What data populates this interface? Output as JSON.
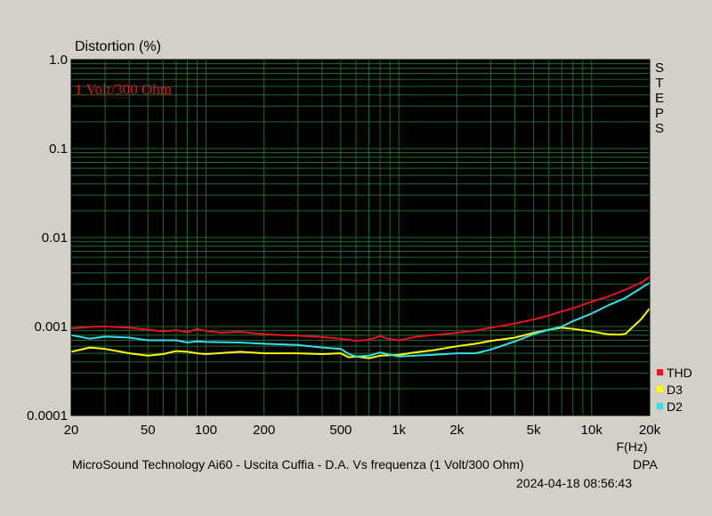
{
  "chart_data": {
    "type": "line",
    "title": "Distortion (%)",
    "annotation": "1 Volt/300 Ohm",
    "steps_label": "STEPS",
    "xlabel": "F(Hz)",
    "caption": "MicroSound Technology Ai60 - Uscita Cuffia - D.A. Vs frequenza (1 Volt/300 Ohm)",
    "brand": "DPA",
    "timestamp": "2024-04-18 08:56:43",
    "x_scale": "log",
    "y_scale": "log",
    "xlim": [
      20,
      20000
    ],
    "ylim": [
      0.0001,
      1.0
    ],
    "grid": true,
    "legend_position": "bottom-right",
    "x_ticks": [
      {
        "value": 20,
        "label": "20"
      },
      {
        "value": 50,
        "label": "50"
      },
      {
        "value": 100,
        "label": "100"
      },
      {
        "value": 200,
        "label": "200"
      },
      {
        "value": 500,
        "label": "500"
      },
      {
        "value": 1000,
        "label": "1k"
      },
      {
        "value": 2000,
        "label": "2k"
      },
      {
        "value": 5000,
        "label": "5k"
      },
      {
        "value": 10000,
        "label": "10k"
      },
      {
        "value": 20000,
        "label": "20k"
      }
    ],
    "y_ticks": [
      {
        "value": 1.0,
        "label": "1.0"
      },
      {
        "value": 0.1,
        "label": "0.1"
      },
      {
        "value": 0.01,
        "label": "0.01"
      },
      {
        "value": 0.001,
        "label": "0.001"
      },
      {
        "value": 0.0001,
        "label": "0.0001"
      }
    ],
    "series": [
      {
        "name": "THD",
        "color": "#e8141e",
        "x": [
          20,
          25,
          30,
          40,
          50,
          60,
          70,
          80,
          90,
          100,
          120,
          150,
          200,
          250,
          300,
          400,
          500,
          600,
          700,
          800,
          900,
          1000,
          1100,
          1200,
          1500,
          2000,
          2500,
          3000,
          4000,
          5000,
          6000,
          7000,
          8000,
          10000,
          12000,
          15000,
          18000,
          20000
        ],
        "values": [
          0.00095,
          0.00099,
          0.001,
          0.00097,
          0.00092,
          0.00088,
          0.00091,
          0.00086,
          0.00094,
          0.00089,
          0.00085,
          0.00087,
          0.00082,
          0.0008,
          0.00079,
          0.00076,
          0.00073,
          0.00069,
          0.00071,
          0.00078,
          0.00072,
          0.0007,
          0.00073,
          0.00076,
          0.0008,
          0.00085,
          0.0009,
          0.00097,
          0.00108,
          0.0012,
          0.00133,
          0.00148,
          0.0016,
          0.0019,
          0.00215,
          0.0026,
          0.0031,
          0.0036
        ]
      },
      {
        "name": "D3",
        "color": "#ffff00",
        "x": [
          20,
          25,
          30,
          40,
          50,
          60,
          70,
          80,
          90,
          100,
          150,
          200,
          300,
          400,
          500,
          550,
          600,
          700,
          800,
          1000,
          1200,
          1500,
          2000,
          2500,
          3000,
          4000,
          5000,
          6000,
          7000,
          8000,
          10000,
          12000,
          14000,
          15000,
          18000,
          20000
        ],
        "values": [
          0.00052,
          0.00058,
          0.00056,
          0.0005,
          0.00047,
          0.00049,
          0.00053,
          0.00052,
          0.0005,
          0.00049,
          0.00052,
          0.0005,
          0.0005,
          0.00049,
          0.0005,
          0.00045,
          0.00046,
          0.00044,
          0.00047,
          0.00048,
          0.00051,
          0.00054,
          0.0006,
          0.00064,
          0.00069,
          0.00075,
          0.00085,
          0.00092,
          0.00097,
          0.00094,
          0.00088,
          0.00082,
          0.00081,
          0.00083,
          0.0012,
          0.0016
        ]
      },
      {
        "name": "D2",
        "color": "#33e0e8",
        "x": [
          20,
          25,
          30,
          40,
          50,
          60,
          70,
          80,
          90,
          100,
          150,
          200,
          300,
          400,
          500,
          550,
          600,
          700,
          800,
          1000,
          1200,
          1500,
          2000,
          2500,
          3000,
          4000,
          5000,
          6000,
          7000,
          8000,
          10000,
          12000,
          15000,
          18000,
          20000
        ],
        "values": [
          0.0008,
          0.00073,
          0.00077,
          0.00075,
          0.0007,
          0.0007,
          0.0007,
          0.00066,
          0.00068,
          0.00067,
          0.00066,
          0.00064,
          0.00062,
          0.00058,
          0.00056,
          0.00049,
          0.00046,
          0.00047,
          0.00051,
          0.00046,
          0.00047,
          0.00048,
          0.0005,
          0.0005,
          0.00055,
          0.00068,
          0.00082,
          0.00092,
          0.001,
          0.00115,
          0.0014,
          0.0017,
          0.0021,
          0.0027,
          0.0031
        ]
      }
    ]
  }
}
